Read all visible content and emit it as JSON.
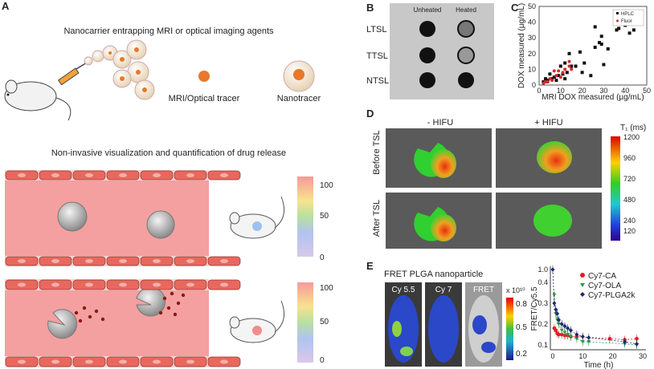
{
  "panels": {
    "A": {
      "label": "A",
      "title_top": "Nanocarrier entrapping MRI or optical imaging agents",
      "tracer_label": "MRI/Optical tracer",
      "nanotracer_label": "Nanotracer",
      "title_bottom": "Non-invasive visualization and quantification of drug release",
      "scale_ticks": [
        "100",
        "50",
        "0"
      ],
      "colors": {
        "tracer": "#e8782a",
        "vessel": "#f5a0a0",
        "cell": "#e8685e"
      }
    },
    "B": {
      "label": "B",
      "columns": [
        "Unheated",
        "Heated"
      ],
      "rows": [
        "LTSL",
        "TTSL",
        "NTSL"
      ]
    },
    "C": {
      "label": "C"
    },
    "D": {
      "label": "D",
      "columns": [
        "- HIFU",
        "+ HIFU"
      ],
      "rows": [
        "Before TSL",
        "After TSL"
      ],
      "colorbar_title": "T₁ (ms)",
      "colorbar_ticks": [
        "1200",
        "960",
        "720",
        "480",
        "240",
        "120"
      ]
    },
    "E": {
      "label": "E",
      "title": "FRET PLGA nanoparticle",
      "images": [
        "Cy 5.5",
        "Cy 7",
        "FRET"
      ],
      "colorbar_unit": "x 10¹⁰",
      "colorbar_ticks": [
        "0.8",
        "0.5",
        "0.2"
      ]
    }
  },
  "chart_data": [
    {
      "type": "scatter",
      "panel": "C",
      "xlabel": "MRI DOX measured (µg/mL)",
      "ylabel": "DOX measured (µg/mL)",
      "xlim": [
        0,
        50
      ],
      "ylim": [
        0,
        50
      ],
      "xticks": [
        "0",
        "10",
        "20",
        "30",
        "40",
        "50"
      ],
      "yticks": [
        "0",
        "10",
        "20",
        "30",
        "40",
        "50"
      ],
      "legend_position": "top-right",
      "series": [
        {
          "name": "HPLC",
          "color": "#111111",
          "points": [
            [
              2,
              2
            ],
            [
              3,
              4
            ],
            [
              4,
              3
            ],
            [
              5,
              7
            ],
            [
              6,
              4
            ],
            [
              7,
              5
            ],
            [
              8,
              3
            ],
            [
              9,
              6
            ],
            [
              10,
              12
            ],
            [
              11,
              7
            ],
            [
              12,
              4
            ],
            [
              12,
              14
            ],
            [
              13,
              8
            ],
            [
              14,
              20
            ],
            [
              15,
              12
            ],
            [
              17,
              12
            ],
            [
              19,
              21
            ],
            [
              20,
              8
            ],
            [
              21,
              14
            ],
            [
              24,
              6
            ],
            [
              26,
              37
            ],
            [
              26,
              24
            ],
            [
              28,
              27
            ],
            [
              29,
              26
            ],
            [
              29,
              31
            ],
            [
              30,
              13
            ],
            [
              32,
              23
            ],
            [
              36,
              35
            ],
            [
              37,
              36
            ],
            [
              40,
              38
            ],
            [
              42,
              33
            ],
            [
              44,
              35
            ]
          ]
        },
        {
          "name": "Fluor",
          "color": "#d42a2a",
          "points": [
            [
              2,
              1
            ],
            [
              3,
              2
            ],
            [
              4,
              2
            ],
            [
              5,
              4
            ],
            [
              6,
              3
            ],
            [
              7,
              9
            ],
            [
              8,
              6
            ],
            [
              9,
              9
            ],
            [
              10,
              5
            ],
            [
              11,
              8
            ],
            [
              12,
              10
            ],
            [
              14,
              15
            ],
            [
              14,
              12
            ],
            [
              15,
              10
            ]
          ]
        }
      ]
    },
    {
      "type": "line",
      "panel": "E",
      "xlabel": "Time (h)",
      "ylabel": "FRET/Cy5.5",
      "xlim": [
        0,
        30
      ],
      "xticks": [
        "0",
        "10",
        "20",
        "30"
      ],
      "yticks": [
        "0.1",
        "0.2",
        "0.3",
        "0.4",
        "1.0"
      ],
      "axis_break": true,
      "legend_position": "top-right",
      "series": [
        {
          "name": "Cy7-CA",
          "color": "#e02020",
          "marker": "circle",
          "x": [
            0.5,
            1,
            1.5,
            2,
            3,
            4,
            5,
            6,
            8,
            19,
            24,
            28
          ],
          "y": [
            0.18,
            0.17,
            0.155,
            0.15,
            0.15,
            0.145,
            0.145,
            0.14,
            0.14,
            0.13,
            0.125,
            0.13
          ]
        },
        {
          "name": "Cy7-OLA",
          "color": "#2a9a4a",
          "marker": "triangle-down",
          "x": [
            0.5,
            1,
            1.5,
            2,
            3,
            4,
            5,
            6,
            8,
            10,
            12,
            24,
            28
          ],
          "y": [
            0.34,
            0.25,
            0.22,
            0.2,
            0.17,
            0.16,
            0.15,
            0.14,
            0.13,
            0.115,
            0.115,
            0.105,
            0.1
          ]
        },
        {
          "name": "Cy7-PLGA2k",
          "color": "#1c2a6e",
          "marker": "diamond",
          "x": [
            0,
            0.5,
            1,
            1.5,
            2,
            3,
            4,
            5,
            6,
            8,
            10,
            12,
            24,
            28
          ],
          "y": [
            1.0,
            0.3,
            0.27,
            0.25,
            0.22,
            0.2,
            0.19,
            0.18,
            0.17,
            0.15,
            0.14,
            0.135,
            0.115,
            0.105
          ]
        }
      ]
    }
  ]
}
